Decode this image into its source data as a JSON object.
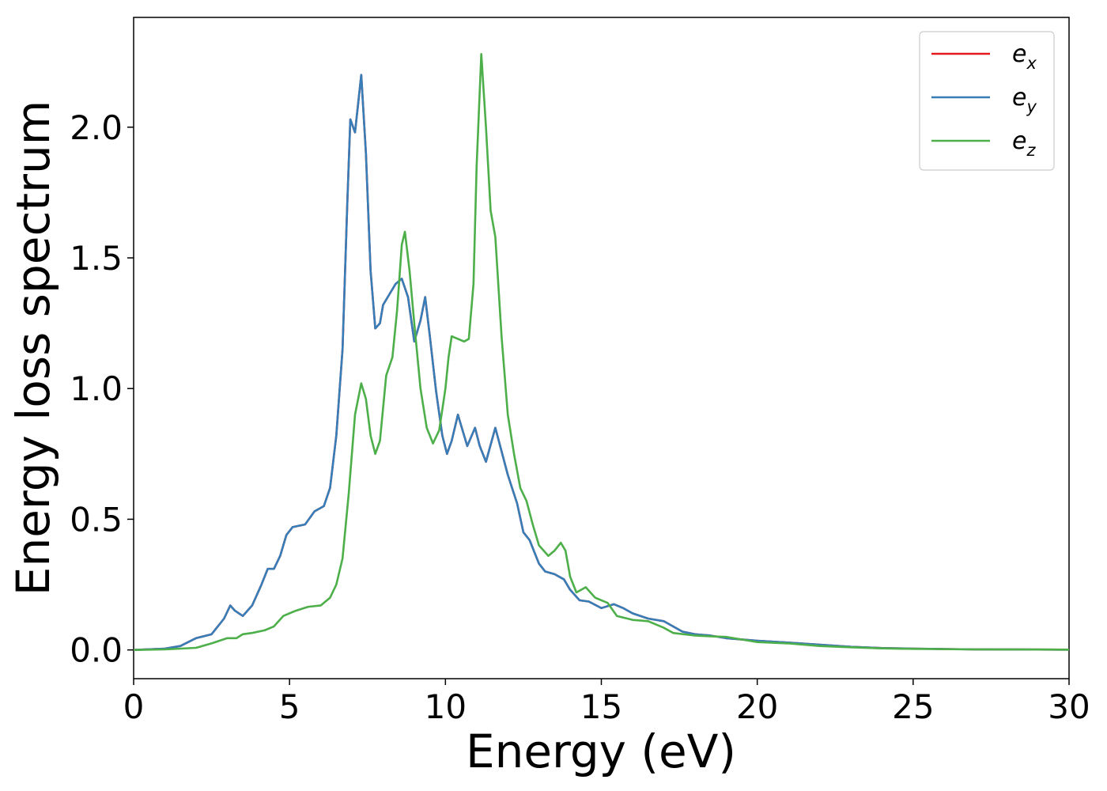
{
  "chart_data": {
    "type": "line",
    "xlabel": "Energy (eV)",
    "ylabel": "Energy loss spectrum",
    "xlim": [
      0,
      30
    ],
    "ylim": [
      -0.11,
      2.42
    ],
    "xticks": [
      "0",
      "5",
      "10",
      "15",
      "20",
      "25",
      "30"
    ],
    "yticks": [
      "0.0",
      "0.5",
      "1.0",
      "1.5",
      "2.0"
    ],
    "grid": false,
    "legend_position": "top-right",
    "series": [
      {
        "name": "e_x",
        "legend_base": "e",
        "legend_sub": "x",
        "color": "#e41a1c",
        "points": [
          [
            0,
            0.0
          ],
          [
            1,
            0.005
          ],
          [
            1.5,
            0.015
          ],
          [
            2,
            0.045
          ],
          [
            2.5,
            0.06
          ],
          [
            2.9,
            0.12
          ],
          [
            3.1,
            0.17
          ],
          [
            3.25,
            0.15
          ],
          [
            3.5,
            0.13
          ],
          [
            3.8,
            0.17
          ],
          [
            4.1,
            0.25
          ],
          [
            4.3,
            0.31
          ],
          [
            4.5,
            0.31
          ],
          [
            4.7,
            0.36
          ],
          [
            4.9,
            0.44
          ],
          [
            5.1,
            0.47
          ],
          [
            5.5,
            0.48
          ],
          [
            5.8,
            0.53
          ],
          [
            6.1,
            0.55
          ],
          [
            6.3,
            0.62
          ],
          [
            6.5,
            0.82
          ],
          [
            6.7,
            1.15
          ],
          [
            6.85,
            1.7
          ],
          [
            6.95,
            2.03
          ],
          [
            7.1,
            1.98
          ],
          [
            7.3,
            2.2
          ],
          [
            7.45,
            1.9
          ],
          [
            7.6,
            1.45
          ],
          [
            7.75,
            1.23
          ],
          [
            7.9,
            1.25
          ],
          [
            8.0,
            1.32
          ],
          [
            8.2,
            1.36
          ],
          [
            8.4,
            1.4
          ],
          [
            8.6,
            1.42
          ],
          [
            8.8,
            1.35
          ],
          [
            9.0,
            1.18
          ],
          [
            9.2,
            1.26
          ],
          [
            9.35,
            1.35
          ],
          [
            9.5,
            1.2
          ],
          [
            9.7,
            0.99
          ],
          [
            9.9,
            0.82
          ],
          [
            10.05,
            0.75
          ],
          [
            10.2,
            0.8
          ],
          [
            10.4,
            0.9
          ],
          [
            10.55,
            0.84
          ],
          [
            10.7,
            0.78
          ],
          [
            10.95,
            0.85
          ],
          [
            11.1,
            0.78
          ],
          [
            11.3,
            0.72
          ],
          [
            11.6,
            0.85
          ],
          [
            11.8,
            0.76
          ],
          [
            12.0,
            0.67
          ],
          [
            12.3,
            0.56
          ],
          [
            12.5,
            0.45
          ],
          [
            12.7,
            0.42
          ],
          [
            13.0,
            0.33
          ],
          [
            13.2,
            0.3
          ],
          [
            13.5,
            0.29
          ],
          [
            13.8,
            0.27
          ],
          [
            14.0,
            0.23
          ],
          [
            14.3,
            0.19
          ],
          [
            14.6,
            0.185
          ],
          [
            15.0,
            0.16
          ],
          [
            15.4,
            0.175
          ],
          [
            15.7,
            0.16
          ],
          [
            16.0,
            0.14
          ],
          [
            16.5,
            0.12
          ],
          [
            17.0,
            0.11
          ],
          [
            17.3,
            0.09
          ],
          [
            17.6,
            0.07
          ],
          [
            18.0,
            0.06
          ],
          [
            18.5,
            0.055
          ],
          [
            19.0,
            0.045
          ],
          [
            20.0,
            0.035
          ],
          [
            21.0,
            0.028
          ],
          [
            22.0,
            0.02
          ],
          [
            23.0,
            0.012
          ],
          [
            24.0,
            0.007
          ],
          [
            25.0,
            0.005
          ],
          [
            27.0,
            0.002
          ],
          [
            30.0,
            0.001
          ]
        ]
      },
      {
        "name": "e_y",
        "legend_base": "e",
        "legend_sub": "y",
        "color": "#377eb8",
        "points": [
          [
            0,
            0.0
          ],
          [
            1,
            0.005
          ],
          [
            1.5,
            0.015
          ],
          [
            2,
            0.045
          ],
          [
            2.5,
            0.06
          ],
          [
            2.9,
            0.12
          ],
          [
            3.1,
            0.17
          ],
          [
            3.25,
            0.15
          ],
          [
            3.5,
            0.13
          ],
          [
            3.8,
            0.17
          ],
          [
            4.1,
            0.25
          ],
          [
            4.3,
            0.31
          ],
          [
            4.5,
            0.31
          ],
          [
            4.7,
            0.36
          ],
          [
            4.9,
            0.44
          ],
          [
            5.1,
            0.47
          ],
          [
            5.5,
            0.48
          ],
          [
            5.8,
            0.53
          ],
          [
            6.1,
            0.55
          ],
          [
            6.3,
            0.62
          ],
          [
            6.5,
            0.82
          ],
          [
            6.7,
            1.15
          ],
          [
            6.85,
            1.7
          ],
          [
            6.95,
            2.03
          ],
          [
            7.1,
            1.98
          ],
          [
            7.3,
            2.2
          ],
          [
            7.45,
            1.9
          ],
          [
            7.6,
            1.45
          ],
          [
            7.75,
            1.23
          ],
          [
            7.9,
            1.25
          ],
          [
            8.0,
            1.32
          ],
          [
            8.2,
            1.36
          ],
          [
            8.4,
            1.4
          ],
          [
            8.6,
            1.42
          ],
          [
            8.8,
            1.35
          ],
          [
            9.0,
            1.18
          ],
          [
            9.2,
            1.26
          ],
          [
            9.35,
            1.35
          ],
          [
            9.5,
            1.2
          ],
          [
            9.7,
            0.99
          ],
          [
            9.9,
            0.82
          ],
          [
            10.05,
            0.75
          ],
          [
            10.2,
            0.8
          ],
          [
            10.4,
            0.9
          ],
          [
            10.55,
            0.84
          ],
          [
            10.7,
            0.78
          ],
          [
            10.95,
            0.85
          ],
          [
            11.1,
            0.78
          ],
          [
            11.3,
            0.72
          ],
          [
            11.6,
            0.85
          ],
          [
            11.8,
            0.76
          ],
          [
            12.0,
            0.67
          ],
          [
            12.3,
            0.56
          ],
          [
            12.5,
            0.45
          ],
          [
            12.7,
            0.42
          ],
          [
            13.0,
            0.33
          ],
          [
            13.2,
            0.3
          ],
          [
            13.5,
            0.29
          ],
          [
            13.8,
            0.27
          ],
          [
            14.0,
            0.23
          ],
          [
            14.3,
            0.19
          ],
          [
            14.6,
            0.185
          ],
          [
            15.0,
            0.16
          ],
          [
            15.4,
            0.175
          ],
          [
            15.7,
            0.16
          ],
          [
            16.0,
            0.14
          ],
          [
            16.5,
            0.12
          ],
          [
            17.0,
            0.11
          ],
          [
            17.3,
            0.09
          ],
          [
            17.6,
            0.07
          ],
          [
            18.0,
            0.06
          ],
          [
            18.5,
            0.055
          ],
          [
            19.0,
            0.045
          ],
          [
            20.0,
            0.035
          ],
          [
            21.0,
            0.028
          ],
          [
            22.0,
            0.02
          ],
          [
            23.0,
            0.012
          ],
          [
            24.0,
            0.007
          ],
          [
            25.0,
            0.005
          ],
          [
            27.0,
            0.002
          ],
          [
            30.0,
            0.001
          ]
        ]
      },
      {
        "name": "e_z",
        "legend_base": "e",
        "legend_sub": "z",
        "color": "#4daf4a",
        "points": [
          [
            0,
            0.0
          ],
          [
            1,
            0.002
          ],
          [
            2,
            0.008
          ],
          [
            2.5,
            0.025
          ],
          [
            3,
            0.045
          ],
          [
            3.3,
            0.045
          ],
          [
            3.5,
            0.06
          ],
          [
            3.8,
            0.065
          ],
          [
            4.2,
            0.075
          ],
          [
            4.5,
            0.09
          ],
          [
            4.8,
            0.13
          ],
          [
            5.2,
            0.15
          ],
          [
            5.6,
            0.165
          ],
          [
            6.0,
            0.17
          ],
          [
            6.3,
            0.2
          ],
          [
            6.5,
            0.25
          ],
          [
            6.7,
            0.35
          ],
          [
            6.9,
            0.6
          ],
          [
            7.1,
            0.9
          ],
          [
            7.3,
            1.02
          ],
          [
            7.45,
            0.96
          ],
          [
            7.6,
            0.82
          ],
          [
            7.75,
            0.75
          ],
          [
            7.9,
            0.8
          ],
          [
            8.1,
            1.05
          ],
          [
            8.3,
            1.12
          ],
          [
            8.45,
            1.3
          ],
          [
            8.6,
            1.55
          ],
          [
            8.7,
            1.6
          ],
          [
            8.85,
            1.45
          ],
          [
            9.0,
            1.25
          ],
          [
            9.2,
            1.0
          ],
          [
            9.4,
            0.85
          ],
          [
            9.6,
            0.79
          ],
          [
            9.8,
            0.84
          ],
          [
            10.0,
            1.0
          ],
          [
            10.1,
            1.12
          ],
          [
            10.2,
            1.2
          ],
          [
            10.4,
            1.19
          ],
          [
            10.6,
            1.18
          ],
          [
            10.75,
            1.19
          ],
          [
            10.9,
            1.4
          ],
          [
            11.0,
            1.85
          ],
          [
            11.15,
            2.28
          ],
          [
            11.3,
            2.0
          ],
          [
            11.45,
            1.68
          ],
          [
            11.6,
            1.58
          ],
          [
            11.8,
            1.2
          ],
          [
            12.0,
            0.9
          ],
          [
            12.2,
            0.75
          ],
          [
            12.4,
            0.62
          ],
          [
            12.6,
            0.57
          ],
          [
            12.8,
            0.48
          ],
          [
            13.0,
            0.4
          ],
          [
            13.3,
            0.36
          ],
          [
            13.5,
            0.38
          ],
          [
            13.7,
            0.41
          ],
          [
            13.85,
            0.38
          ],
          [
            14.0,
            0.28
          ],
          [
            14.2,
            0.22
          ],
          [
            14.5,
            0.24
          ],
          [
            14.8,
            0.2
          ],
          [
            15.2,
            0.18
          ],
          [
            15.5,
            0.13
          ],
          [
            16.0,
            0.115
          ],
          [
            16.5,
            0.11
          ],
          [
            17.0,
            0.085
          ],
          [
            17.3,
            0.065
          ],
          [
            18.0,
            0.055
          ],
          [
            18.5,
            0.052
          ],
          [
            19.0,
            0.05
          ],
          [
            20.0,
            0.03
          ],
          [
            21.0,
            0.025
          ],
          [
            22.0,
            0.015
          ],
          [
            23.0,
            0.01
          ],
          [
            24.0,
            0.006
          ],
          [
            25.0,
            0.004
          ],
          [
            27.0,
            0.002
          ],
          [
            30.0,
            0.001
          ]
        ]
      }
    ]
  }
}
